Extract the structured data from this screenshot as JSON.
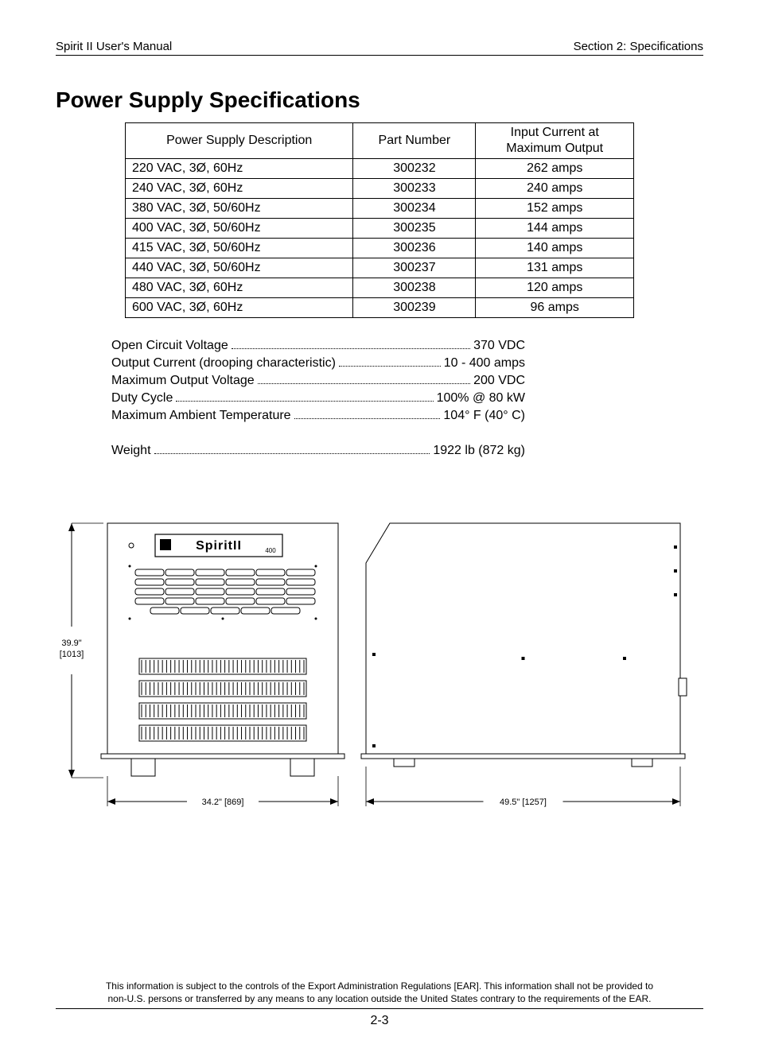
{
  "header": {
    "left": "Spirit II User's Manual",
    "right": "Section 2: Specifications"
  },
  "title": "Power Supply Specifications",
  "table": {
    "columns": [
      "Power Supply Description",
      "Part Number",
      "Input Current at Maximum Output"
    ],
    "rows": [
      [
        "220 VAC, 3Ø, 60Hz",
        "300232",
        "262 amps"
      ],
      [
        "240 VAC, 3Ø, 60Hz",
        "300233",
        "240 amps"
      ],
      [
        "380 VAC, 3Ø, 50/60Hz",
        "300234",
        "152 amps"
      ],
      [
        "400 VAC, 3Ø, 50/60Hz",
        "300235",
        "144 amps"
      ],
      [
        "415 VAC, 3Ø, 50/60Hz",
        "300236",
        "140 amps"
      ],
      [
        "440 VAC, 3Ø, 50/60Hz",
        "300237",
        "131 amps"
      ],
      [
        "480 VAC, 3Ø, 60Hz",
        "300238",
        "120 amps"
      ],
      [
        "600 VAC, 3Ø, 60Hz",
        "300239",
        "96 amps"
      ]
    ]
  },
  "specs_block1": [
    {
      "label": "Open Circuit Voltage",
      "value": "370 VDC"
    },
    {
      "label": "Output Current (drooping characteristic)",
      "value": "10 - 400 amps"
    },
    {
      "label": "Maximum Output Voltage",
      "value": "200 VDC"
    },
    {
      "label": "Duty Cycle",
      "value": "100% @ 80 kW"
    },
    {
      "label": "Maximum Ambient Temperature",
      "value": "104° F (40° C)"
    }
  ],
  "specs_block2": [
    {
      "label": "Weight",
      "value": "1922 lb (872 kg)"
    }
  ],
  "diagram": {
    "height_label": "39.9\"",
    "height_mm": "[1013]",
    "front_width": "34.2\" [869]",
    "side_width": "49.5\" [1257]",
    "product_label": "SpiritII",
    "product_label_suffix": "400",
    "stroke": "#000000",
    "fill": "#ffffff",
    "font_family": "Arial, Helvetica, sans-serif",
    "dim_fontsize": 11
  },
  "footer": {
    "line1": "This information is subject to the controls of the Export Administration Regulations [EAR].  This information shall not be provided to",
    "line2": "non-U.S. persons or transferred by any means to any location outside the United States contrary to the requirements of the EAR."
  },
  "page_number": "2-3"
}
